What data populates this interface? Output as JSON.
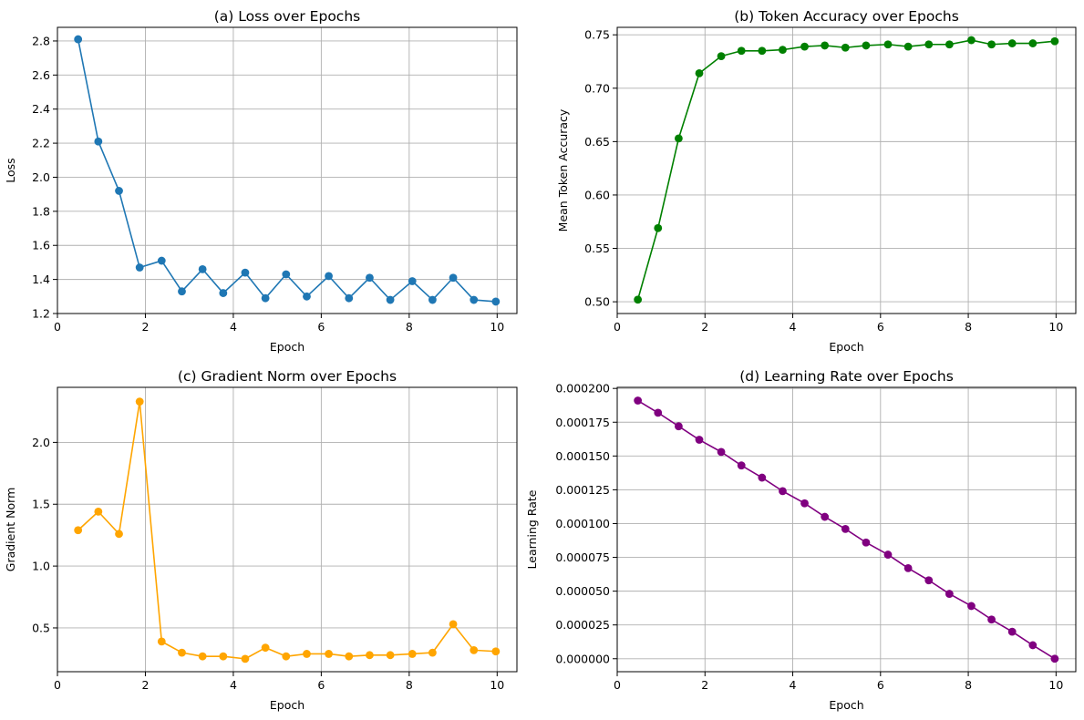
{
  "chart_data": [
    {
      "type": "line",
      "title": "(a) Loss over Epochs",
      "xlabel": "Epoch",
      "ylabel": "Loss",
      "xlim": [
        0,
        10.45
      ],
      "ylim": [
        1.2,
        2.88
      ],
      "xticks": [
        0,
        2,
        4,
        6,
        8,
        10
      ],
      "yticks": [
        1.2,
        1.4,
        1.6,
        1.8,
        2.0,
        2.2,
        2.4,
        2.6,
        2.8
      ],
      "ytick_decimals": 1,
      "grid": true,
      "series": [
        {
          "color": "#1f77b4",
          "x": [
            0.47,
            0.93,
            1.4,
            1.87,
            2.37,
            2.83,
            3.3,
            3.77,
            4.27,
            4.73,
            5.2,
            5.67,
            6.17,
            6.63,
            7.1,
            7.57,
            8.07,
            8.53,
            9.0,
            9.47,
            9.97
          ],
          "values": [
            2.81,
            2.21,
            1.92,
            1.47,
            1.51,
            1.33,
            1.46,
            1.32,
            1.44,
            1.29,
            1.43,
            1.3,
            1.42,
            1.29,
            1.41,
            1.28,
            1.39,
            1.28,
            1.41,
            1.28,
            1.27
          ]
        }
      ]
    },
    {
      "type": "line",
      "title": "(b) Token Accuracy over Epochs",
      "xlabel": "Epoch",
      "ylabel": "Mean Token Accuracy",
      "xlim": [
        0,
        10.45
      ],
      "ylim": [
        0.489,
        0.757
      ],
      "xticks": [
        0,
        2,
        4,
        6,
        8,
        10
      ],
      "yticks": [
        0.5,
        0.55,
        0.6,
        0.65,
        0.7,
        0.75
      ],
      "ytick_decimals": 2,
      "grid": true,
      "series": [
        {
          "color": "#008000",
          "x": [
            0.47,
            0.93,
            1.4,
            1.87,
            2.37,
            2.83,
            3.3,
            3.77,
            4.27,
            4.73,
            5.2,
            5.67,
            6.17,
            6.63,
            7.1,
            7.57,
            8.07,
            8.53,
            9.0,
            9.47,
            9.97
          ],
          "values": [
            0.502,
            0.569,
            0.653,
            0.714,
            0.73,
            0.735,
            0.735,
            0.736,
            0.739,
            0.74,
            0.738,
            0.74,
            0.741,
            0.739,
            0.741,
            0.741,
            0.745,
            0.741,
            0.742,
            0.742,
            0.744
          ]
        }
      ]
    },
    {
      "type": "line",
      "title": "(c) Gradient Norm over Epochs",
      "xlabel": "Epoch",
      "ylabel": "Gradient Norm",
      "xlim": [
        0,
        10.45
      ],
      "ylim": [
        0.146,
        2.445
      ],
      "xticks": [
        0,
        2,
        4,
        6,
        8,
        10
      ],
      "yticks": [
        0.5,
        1.0,
        1.5,
        2.0
      ],
      "ytick_decimals": 1,
      "grid": true,
      "series": [
        {
          "color": "#ffa500",
          "x": [
            0.47,
            0.93,
            1.4,
            1.87,
            2.37,
            2.83,
            3.3,
            3.77,
            4.27,
            4.73,
            5.2,
            5.67,
            6.17,
            6.63,
            7.1,
            7.57,
            8.07,
            8.53,
            9.0,
            9.47,
            9.97
          ],
          "values": [
            1.29,
            1.44,
            1.26,
            2.33,
            0.39,
            0.3,
            0.27,
            0.27,
            0.25,
            0.34,
            0.27,
            0.29,
            0.29,
            0.27,
            0.28,
            0.28,
            0.29,
            0.3,
            0.53,
            0.32,
            0.31
          ]
        }
      ]
    },
    {
      "type": "line",
      "title": "(d) Learning Rate over Epochs",
      "xlabel": "Epoch",
      "ylabel": "Learning Rate",
      "xlim": [
        0,
        10.45
      ],
      "ylim": [
        -9.6e-06,
        0.0002008
      ],
      "xticks": [
        0,
        2,
        4,
        6,
        8,
        10
      ],
      "yticks": [
        0.0,
        2.5e-05,
        5e-05,
        7.5e-05,
        0.0001,
        0.000125,
        0.00015,
        0.000175,
        0.0002
      ],
      "ytick_decimals": 6,
      "grid": true,
      "series": [
        {
          "color": "#800080",
          "x": [
            0.47,
            0.93,
            1.4,
            1.87,
            2.37,
            2.83,
            3.3,
            3.77,
            4.27,
            4.73,
            5.2,
            5.67,
            6.17,
            6.63,
            7.1,
            7.57,
            8.07,
            8.53,
            9.0,
            9.47,
            9.97
          ],
          "values": [
            0.000191,
            0.000182,
            0.000172,
            0.000162,
            0.000153,
            0.000143,
            0.000134,
            0.000124,
            0.000115,
            0.000105,
            9.6e-05,
            8.6e-05,
            7.7e-05,
            6.7e-05,
            5.8e-05,
            4.8e-05,
            3.9e-05,
            2.9e-05,
            2e-05,
            1e-05,
            0.0
          ]
        }
      ]
    }
  ]
}
